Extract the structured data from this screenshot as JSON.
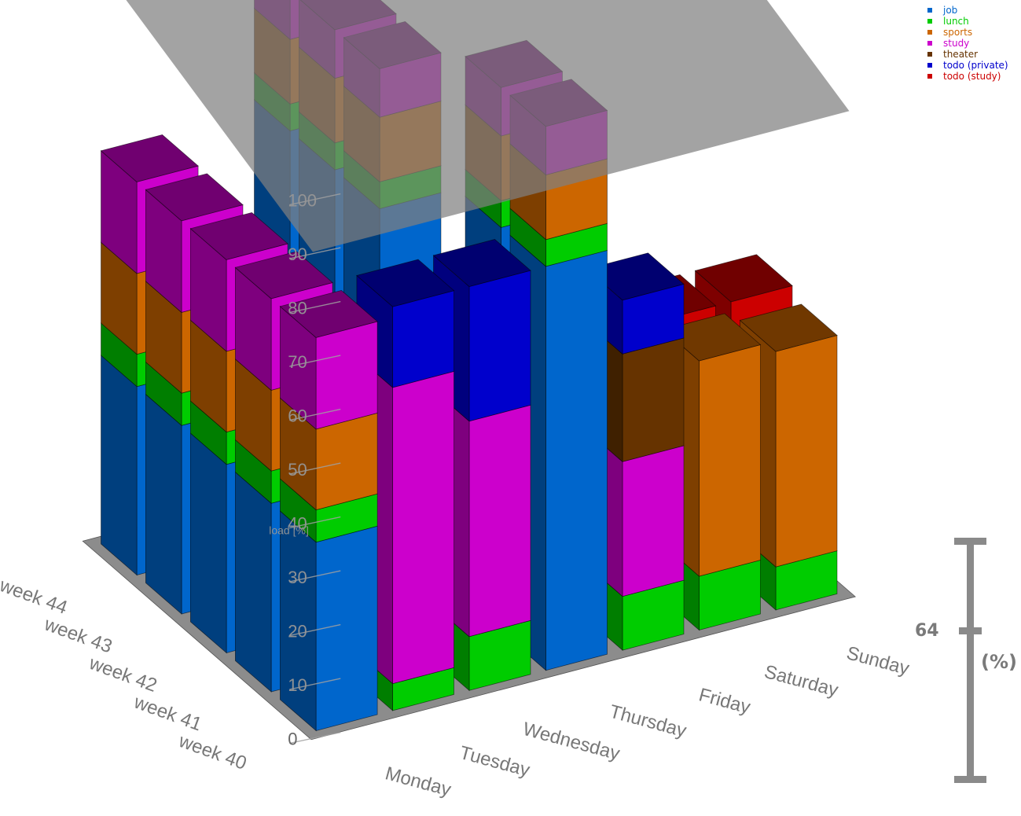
{
  "chart_data": {
    "type": "bar",
    "style": "3d-stacked",
    "zlabel": "load [%]",
    "zlim": [
      0,
      100
    ],
    "z_ticks": [
      "0",
      "10",
      "20",
      "30",
      "40",
      "50",
      "60",
      "70",
      "80",
      "90",
      "100"
    ],
    "categories": [
      "Monday",
      "Tuesday",
      "Wednesday",
      "Thursday",
      "Friday",
      "Saturday",
      "Sunday"
    ],
    "weeks": [
      "week 40",
      "week 41",
      "week 42",
      "week 43",
      "week 44"
    ],
    "reference_plane": 100,
    "legend_position": "top-right",
    "series": [
      {
        "name": "job",
        "color": "#0066cc"
      },
      {
        "name": "lunch",
        "color": "#00cc00"
      },
      {
        "name": "sports",
        "color": "#cc6600"
      },
      {
        "name": "study",
        "color": "#cc00cc"
      },
      {
        "name": "theater",
        "color": "#663300"
      },
      {
        "name": "todo (private)",
        "color": "#0000cc"
      },
      {
        "name": "todo (study)",
        "color": "#cc0000"
      }
    ],
    "bars": [
      {
        "week": "week 40",
        "day": "Monday",
        "segments": {
          "job": 35,
          "lunch": 6,
          "sports": 15,
          "study": 17
        }
      },
      {
        "week": "week 40",
        "day": "Tuesday",
        "segments": {
          "lunch": 5,
          "study": 55,
          "todo (private)": 15
        }
      },
      {
        "week": "week 40",
        "day": "Wednesday",
        "segments": {
          "lunch": 10,
          "study": 40,
          "todo (private)": 25
        }
      },
      {
        "week": "week 40",
        "day": "Thursday",
        "segments": {
          "job": 75,
          "lunch": 5,
          "sports": 12,
          "study": 9
        }
      },
      {
        "week": "week 40",
        "day": "Friday",
        "segments": {
          "lunch": 10,
          "study": 25,
          "theater": 20,
          "todo (private)": 10
        }
      },
      {
        "week": "week 40",
        "day": "Saturday",
        "segments": {
          "lunch": 10,
          "sports": 40
        }
      },
      {
        "week": "week 40",
        "day": "Sunday",
        "segments": {
          "lunch": 8,
          "sports": 40
        }
      },
      {
        "week": "week 41",
        "day": "Monday",
        "segments": {
          "job": 35,
          "lunch": 6,
          "sports": 15,
          "study": 17
        }
      },
      {
        "week": "week 41",
        "day": "Tuesday",
        "segments": {
          "theater": 20
        }
      },
      {
        "week": "week 41",
        "day": "Wednesday",
        "segments": {
          "study": 40
        }
      },
      {
        "week": "week 41",
        "day": "Thursday",
        "segments": {
          "job": 75,
          "lunch": 5,
          "sports": 12,
          "study": 9
        }
      },
      {
        "week": "week 41",
        "day": "Friday",
        "segments": {
          "theater": 15
        }
      },
      {
        "week": "week 41",
        "day": "Saturday",
        "segments": {
          "sports": 5,
          "todo (study)": 45
        }
      },
      {
        "week": "week 41",
        "day": "Sunday",
        "segments": {
          "sports": 5,
          "todo (study)": 45
        }
      },
      {
        "week": "week 42",
        "day": "Monday",
        "segments": {
          "job": 35,
          "lunch": 6,
          "sports": 15,
          "study": 17
        }
      },
      {
        "week": "week 42",
        "day": "Tuesday",
        "segments": {
          "theater": 20
        }
      },
      {
        "week": "week 42",
        "day": "Wednesday",
        "segments": {
          "job": 75,
          "lunch": 5,
          "sports": 12,
          "study": 9
        }
      },
      {
        "week": "week 43",
        "day": "Monday",
        "segments": {
          "job": 35,
          "lunch": 6,
          "sports": 15,
          "study": 17
        }
      },
      {
        "week": "week 43",
        "day": "Tuesday",
        "segments": {
          "theater": 20
        }
      },
      {
        "week": "week 43",
        "day": "Wednesday",
        "segments": {
          "job": 75,
          "lunch": 5,
          "sports": 12,
          "study": 9
        }
      },
      {
        "week": "week 44",
        "day": "Monday",
        "segments": {
          "job": 35,
          "lunch": 6,
          "sports": 15,
          "study": 17
        }
      },
      {
        "week": "week 44",
        "day": "Tuesday",
        "segments": {
          "theater": 20
        }
      },
      {
        "week": "week 44",
        "day": "Wednesday",
        "segments": {
          "job": 75,
          "lunch": 5,
          "sports": 12,
          "study": 9
        }
      }
    ]
  },
  "scale_widget": {
    "value": "64",
    "unit": "(%)"
  }
}
